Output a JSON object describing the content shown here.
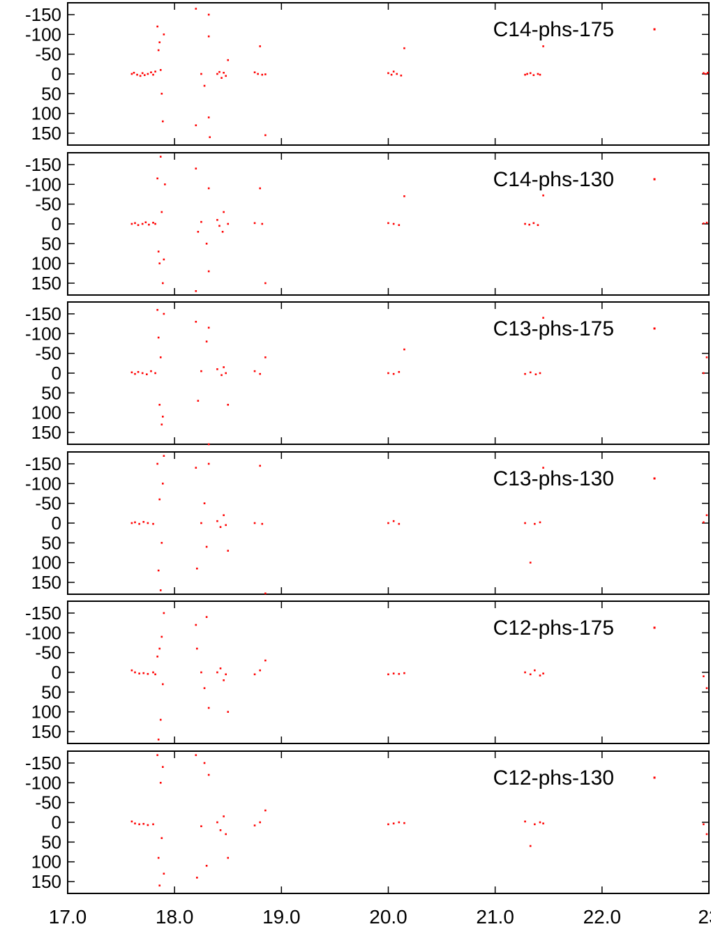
{
  "colors": {
    "points": "#ff0000",
    "axes": "#000000",
    "background": "#ffffff"
  },
  "chart_data": {
    "type": "scatter",
    "layout": "stacked-panels",
    "shared_x": {
      "xlim": [
        17.0,
        23.0
      ],
      "ticks": [
        17.0,
        18.0,
        19.0,
        20.0,
        21.0,
        22.0,
        23.0
      ],
      "tick_labels": [
        "17.0",
        "18.0",
        "19.0",
        "20.0",
        "21.0",
        "22.0",
        "23"
      ]
    },
    "y_axis": {
      "ylim": [
        180,
        -180
      ],
      "inverted": true,
      "ticks": [
        -150,
        -100,
        -50,
        0,
        50,
        100,
        150
      ],
      "tick_labels": [
        "-150",
        "-100",
        "-50",
        "0",
        "50",
        "100",
        "150"
      ]
    },
    "legend_placement": "top-right",
    "grid": false,
    "panels": [
      {
        "name": "C14-phs-175",
        "points": [
          [
            17.6,
            0
          ],
          [
            17.62,
            -3
          ],
          [
            17.65,
            2
          ],
          [
            17.68,
            5
          ],
          [
            17.7,
            -2
          ],
          [
            17.72,
            3
          ],
          [
            17.75,
            0
          ],
          [
            17.78,
            -4
          ],
          [
            17.8,
            2
          ],
          [
            17.82,
            -6
          ],
          [
            17.84,
            -120
          ],
          [
            17.85,
            -60
          ],
          [
            17.86,
            -80
          ],
          [
            17.87,
            -10
          ],
          [
            17.88,
            50
          ],
          [
            17.89,
            120
          ],
          [
            17.9,
            -100
          ],
          [
            18.2,
            -165
          ],
          [
            18.2,
            130
          ],
          [
            18.25,
            0
          ],
          [
            18.28,
            30
          ],
          [
            18.32,
            -150
          ],
          [
            18.32,
            -95
          ],
          [
            18.32,
            110
          ],
          [
            18.33,
            160
          ],
          [
            18.4,
            0
          ],
          [
            18.42,
            -5
          ],
          [
            18.44,
            10
          ],
          [
            18.46,
            -3
          ],
          [
            18.48,
            5
          ],
          [
            18.5,
            -35
          ],
          [
            18.75,
            -4
          ],
          [
            18.78,
            0
          ],
          [
            18.8,
            -70
          ],
          [
            18.82,
            2
          ],
          [
            18.85,
            1
          ],
          [
            18.85,
            155
          ],
          [
            20.0,
            -2
          ],
          [
            20.03,
            2
          ],
          [
            20.05,
            -6
          ],
          [
            20.08,
            0
          ],
          [
            20.12,
            4
          ],
          [
            20.15,
            -65
          ],
          [
            21.28,
            2
          ],
          [
            21.3,
            0
          ],
          [
            21.33,
            -2
          ],
          [
            21.36,
            3
          ],
          [
            21.4,
            0
          ],
          [
            21.42,
            2
          ],
          [
            21.45,
            -70
          ],
          [
            22.95,
            -2
          ],
          [
            22.97,
            0
          ],
          [
            22.99,
            -3
          ]
        ]
      },
      {
        "name": "C14-phs-130",
        "points": [
          [
            17.6,
            0
          ],
          [
            17.63,
            -2
          ],
          [
            17.66,
            3
          ],
          [
            17.7,
            0
          ],
          [
            17.73,
            -4
          ],
          [
            17.76,
            2
          ],
          [
            17.8,
            -3
          ],
          [
            17.82,
            0
          ],
          [
            17.84,
            -115
          ],
          [
            17.85,
            70
          ],
          [
            17.86,
            100
          ],
          [
            17.87,
            -170
          ],
          [
            17.88,
            -30
          ],
          [
            17.89,
            150
          ],
          [
            17.9,
            90
          ],
          [
            17.91,
            -100
          ],
          [
            18.2,
            170
          ],
          [
            18.2,
            -140
          ],
          [
            18.22,
            20
          ],
          [
            18.25,
            -5
          ],
          [
            18.3,
            50
          ],
          [
            18.32,
            -90
          ],
          [
            18.32,
            120
          ],
          [
            18.4,
            -10
          ],
          [
            18.42,
            5
          ],
          [
            18.45,
            20
          ],
          [
            18.46,
            -30
          ],
          [
            18.5,
            0
          ],
          [
            18.75,
            -2
          ],
          [
            18.8,
            -90
          ],
          [
            18.82,
            0
          ],
          [
            18.85,
            150
          ],
          [
            20.0,
            -2
          ],
          [
            20.05,
            0
          ],
          [
            20.1,
            3
          ],
          [
            20.15,
            -70
          ],
          [
            21.28,
            0
          ],
          [
            21.32,
            2
          ],
          [
            21.36,
            -2
          ],
          [
            21.4,
            3
          ],
          [
            21.45,
            -72
          ],
          [
            22.95,
            -1
          ],
          [
            22.98,
            -3
          ]
        ]
      },
      {
        "name": "C13-phs-175",
        "points": [
          [
            17.6,
            -2
          ],
          [
            17.63,
            2
          ],
          [
            17.66,
            -3
          ],
          [
            17.7,
            0
          ],
          [
            17.74,
            3
          ],
          [
            17.78,
            -5
          ],
          [
            17.82,
            0
          ],
          [
            17.84,
            -160
          ],
          [
            17.85,
            -90
          ],
          [
            17.86,
            80
          ],
          [
            17.87,
            -40
          ],
          [
            17.88,
            130
          ],
          [
            17.89,
            110
          ],
          [
            17.9,
            -150
          ],
          [
            18.2,
            -130
          ],
          [
            18.22,
            70
          ],
          [
            18.25,
            -5
          ],
          [
            18.3,
            -80
          ],
          [
            18.32,
            -115
          ],
          [
            18.32,
            180
          ],
          [
            18.4,
            -10
          ],
          [
            18.44,
            5
          ],
          [
            18.46,
            -15
          ],
          [
            18.48,
            0
          ],
          [
            18.5,
            80
          ],
          [
            18.75,
            -5
          ],
          [
            18.8,
            2
          ],
          [
            18.85,
            -40
          ],
          [
            20.0,
            0
          ],
          [
            20.05,
            2
          ],
          [
            20.1,
            -3
          ],
          [
            20.15,
            -60
          ],
          [
            21.28,
            2
          ],
          [
            21.33,
            -2
          ],
          [
            21.38,
            3
          ],
          [
            21.42,
            0
          ],
          [
            21.45,
            -140
          ],
          [
            22.95,
            0
          ],
          [
            22.98,
            -40
          ]
        ]
      },
      {
        "name": "C13-phs-130",
        "points": [
          [
            17.6,
            0
          ],
          [
            17.63,
            -2
          ],
          [
            17.67,
            2
          ],
          [
            17.71,
            -3
          ],
          [
            17.75,
            0
          ],
          [
            17.8,
            2
          ],
          [
            17.84,
            -150
          ],
          [
            17.85,
            120
          ],
          [
            17.86,
            -60
          ],
          [
            17.87,
            170
          ],
          [
            17.88,
            50
          ],
          [
            17.89,
            -100
          ],
          [
            17.9,
            -170
          ],
          [
            18.2,
            -140
          ],
          [
            18.21,
            115
          ],
          [
            18.25,
            0
          ],
          [
            18.28,
            -50
          ],
          [
            18.3,
            60
          ],
          [
            18.32,
            -150
          ],
          [
            18.4,
            -5
          ],
          [
            18.43,
            10
          ],
          [
            18.46,
            -20
          ],
          [
            18.48,
            5
          ],
          [
            18.5,
            70
          ],
          [
            18.75,
            0
          ],
          [
            18.8,
            -145
          ],
          [
            18.82,
            2
          ],
          [
            18.85,
            178
          ],
          [
            20.0,
            0
          ],
          [
            20.05,
            -5
          ],
          [
            20.1,
            2
          ],
          [
            21.28,
            0
          ],
          [
            21.33,
            100
          ],
          [
            21.37,
            2
          ],
          [
            21.42,
            -2
          ],
          [
            21.45,
            -140
          ],
          [
            22.95,
            -2
          ],
          [
            22.98,
            -20
          ]
        ]
      },
      {
        "name": "C12-phs-175",
        "points": [
          [
            17.6,
            -5
          ],
          [
            17.63,
            0
          ],
          [
            17.67,
            3
          ],
          [
            17.71,
            2
          ],
          [
            17.75,
            4
          ],
          [
            17.8,
            0
          ],
          [
            17.82,
            5
          ],
          [
            17.84,
            -40
          ],
          [
            17.85,
            170
          ],
          [
            17.86,
            -60
          ],
          [
            17.87,
            120
          ],
          [
            17.88,
            -90
          ],
          [
            17.89,
            30
          ],
          [
            17.9,
            -150
          ],
          [
            18.2,
            -120
          ],
          [
            18.21,
            -60
          ],
          [
            18.25,
            0
          ],
          [
            18.28,
            40
          ],
          [
            18.3,
            -140
          ],
          [
            18.32,
            90
          ],
          [
            18.4,
            0
          ],
          [
            18.43,
            -10
          ],
          [
            18.46,
            20
          ],
          [
            18.48,
            5
          ],
          [
            18.5,
            100
          ],
          [
            18.75,
            5
          ],
          [
            18.8,
            -5
          ],
          [
            18.85,
            -30
          ],
          [
            20.0,
            5
          ],
          [
            20.05,
            3
          ],
          [
            20.1,
            4
          ],
          [
            20.15,
            2
          ],
          [
            21.28,
            0
          ],
          [
            21.33,
            5
          ],
          [
            21.37,
            -5
          ],
          [
            21.42,
            8
          ],
          [
            21.45,
            3
          ],
          [
            22.95,
            10
          ],
          [
            22.98,
            40
          ]
        ]
      },
      {
        "name": "C12-phs-130",
        "points": [
          [
            17.6,
            -2
          ],
          [
            17.63,
            3
          ],
          [
            17.67,
            5
          ],
          [
            17.71,
            4
          ],
          [
            17.75,
            7
          ],
          [
            17.8,
            5
          ],
          [
            17.84,
            -170
          ],
          [
            17.85,
            90
          ],
          [
            17.86,
            160
          ],
          [
            17.87,
            -100
          ],
          [
            17.88,
            40
          ],
          [
            17.89,
            -140
          ],
          [
            17.9,
            130
          ],
          [
            18.2,
            -170
          ],
          [
            18.21,
            140
          ],
          [
            18.25,
            10
          ],
          [
            18.28,
            -150
          ],
          [
            18.3,
            110
          ],
          [
            18.32,
            -120
          ],
          [
            18.4,
            0
          ],
          [
            18.43,
            20
          ],
          [
            18.46,
            -15
          ],
          [
            18.48,
            30
          ],
          [
            18.5,
            90
          ],
          [
            18.75,
            8
          ],
          [
            18.8,
            0
          ],
          [
            18.85,
            -30
          ],
          [
            20.0,
            5
          ],
          [
            20.05,
            3
          ],
          [
            20.1,
            0
          ],
          [
            20.15,
            2
          ],
          [
            21.28,
            -2
          ],
          [
            21.33,
            60
          ],
          [
            21.37,
            5
          ],
          [
            21.42,
            0
          ],
          [
            21.45,
            3
          ],
          [
            22.95,
            5
          ],
          [
            22.98,
            30
          ]
        ]
      }
    ]
  }
}
